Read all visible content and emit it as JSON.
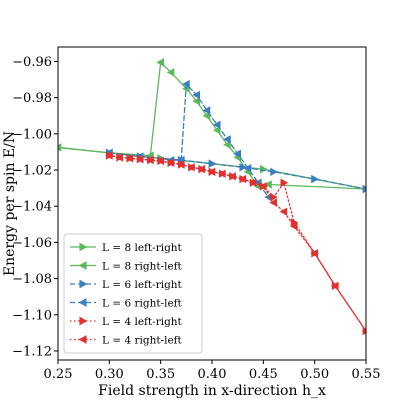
{
  "chart_data": {
    "type": "line",
    "xlabel": "Field strength in x-direction h_x",
    "ylabel": "Energy per spin E/N",
    "xlim": [
      0.25,
      0.55
    ],
    "ylim": [
      -1.125,
      -0.952
    ],
    "xticks": [
      0.25,
      0.3,
      0.35,
      0.4,
      0.45,
      0.5,
      0.55
    ],
    "xtick_labels": [
      "0.25",
      "0.30",
      "0.35",
      "0.40",
      "0.45",
      "0.50",
      "0.55"
    ],
    "yticks": [
      -0.96,
      -0.98,
      -1.0,
      -1.02,
      -1.04,
      -1.06,
      -1.08,
      -1.1,
      -1.12
    ],
    "ytick_labels": [
      "−0.96",
      "−0.98",
      "−1.00",
      "−1.02",
      "−1.04",
      "−1.06",
      "−1.08",
      "−1.10",
      "−1.12"
    ],
    "grid": false,
    "legend_position": "lower-left",
    "series": [
      {
        "name": "L = 8 left-right",
        "color": "#5cb85c",
        "linestyle": "solid",
        "marker": "triangle-right",
        "x": [
          0.25,
          0.3,
          0.35,
          0.4,
          0.45,
          0.5,
          0.55
        ],
        "y": [
          -1.0075,
          -1.0105,
          -1.0135,
          -1.0165,
          -1.0195,
          -1.025,
          -1.0305
        ]
      },
      {
        "name": "L = 8 right-left",
        "color": "#5cb85c",
        "linestyle": "solid",
        "marker": "triangle-left",
        "x": [
          0.25,
          0.3,
          0.34,
          0.35,
          0.36,
          0.375,
          0.385,
          0.395,
          0.405,
          0.415,
          0.425,
          0.435,
          0.445,
          0.455,
          0.55
        ],
        "y": [
          -1.0075,
          -1.0105,
          -1.012,
          -0.9605,
          -0.966,
          -0.975,
          -0.982,
          -0.99,
          -0.998,
          -1.006,
          -1.013,
          -1.021,
          -1.029,
          -1.028,
          -1.0305
        ]
      },
      {
        "name": "L = 6 left-right",
        "color": "#3a7fbf",
        "linestyle": "dashed",
        "marker": "triangle-right",
        "x": [
          0.3,
          0.33,
          0.37,
          0.4,
          0.43,
          0.46,
          0.5,
          0.55
        ],
        "y": [
          -1.0105,
          -1.0125,
          -1.0145,
          -1.0165,
          -1.0185,
          -1.021,
          -1.025,
          -1.0305
        ]
      },
      {
        "name": "L = 6 right-left",
        "color": "#3a7fbf",
        "linestyle": "dashed",
        "marker": "triangle-left",
        "x": [
          0.3,
          0.33,
          0.36,
          0.37,
          0.375,
          0.385,
          0.395,
          0.405,
          0.415,
          0.425,
          0.435,
          0.445,
          0.455
        ],
        "y": [
          -1.0105,
          -1.0125,
          -1.0145,
          -1.0145,
          -0.9725,
          -0.9785,
          -0.987,
          -0.995,
          -1.003,
          -1.011,
          -1.019,
          -1.027,
          -1.035
        ]
      },
      {
        "name": "L = 4 left-right",
        "color": "#e03030",
        "linestyle": "dotted",
        "marker": "triangle-right",
        "x": [
          0.3,
          0.31,
          0.32,
          0.33,
          0.34,
          0.35,
          0.36,
          0.37,
          0.38,
          0.39,
          0.4,
          0.41,
          0.42,
          0.43,
          0.44,
          0.45,
          0.46,
          0.47,
          0.48,
          0.5,
          0.52,
          0.55
        ],
        "y": [
          -1.012,
          -1.013,
          -1.0135,
          -1.014,
          -1.0145,
          -1.015,
          -1.016,
          -1.017,
          -1.0185,
          -1.0195,
          -1.021,
          -1.022,
          -1.0235,
          -1.025,
          -1.027,
          -1.029,
          -1.035,
          -1.027,
          -1.049,
          -1.066,
          -1.084,
          -1.109
        ]
      },
      {
        "name": "L = 4 right-left",
        "color": "#e03030",
        "linestyle": "dotted",
        "marker": "triangle-left",
        "x": [
          0.3,
          0.31,
          0.32,
          0.33,
          0.34,
          0.35,
          0.36,
          0.37,
          0.38,
          0.39,
          0.4,
          0.41,
          0.42,
          0.43,
          0.44,
          0.45,
          0.46,
          0.47,
          0.48,
          0.5,
          0.52,
          0.55
        ],
        "y": [
          -1.012,
          -1.013,
          -1.0135,
          -1.014,
          -1.0145,
          -1.015,
          -1.016,
          -1.017,
          -1.0185,
          -1.0195,
          -1.021,
          -1.022,
          -1.0235,
          -1.025,
          -1.027,
          -1.029,
          -1.038,
          -1.043,
          -1.051,
          -1.066,
          -1.084,
          -1.109
        ]
      }
    ]
  }
}
